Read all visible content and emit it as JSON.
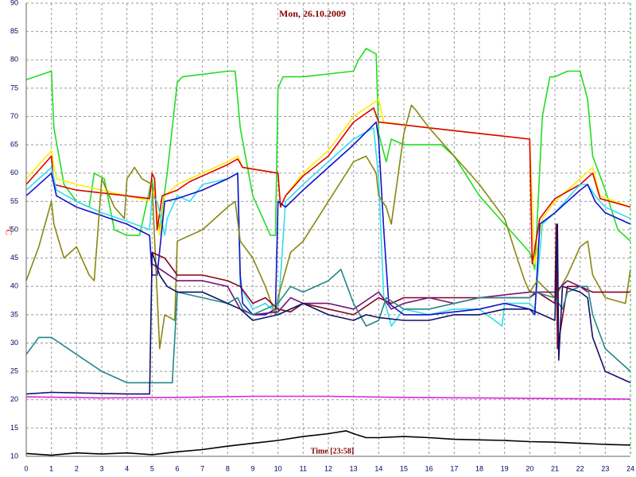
{
  "chart_data": {
    "type": "line",
    "title": "Mon, 26.10.2009",
    "x_label": "Time [23:58]",
    "y_label": "°C",
    "xlim": [
      0,
      24
    ],
    "ylim": [
      10,
      90
    ],
    "grid": true,
    "xticks": [
      0,
      1,
      2,
      3,
      4,
      5,
      6,
      7,
      8,
      9,
      10,
      11,
      12,
      13,
      14,
      15,
      16,
      17,
      18,
      19,
      20,
      21,
      22,
      23,
      24
    ],
    "yticks": [
      10,
      15,
      20,
      25,
      30,
      35,
      40,
      45,
      50,
      55,
      60,
      65,
      70,
      75,
      80,
      85,
      90
    ],
    "series": [
      {
        "color": "#22dd22",
        "x": [
          0,
          1,
          1.1,
          1.5,
          2,
          2.5,
          2.7,
          3.1,
          3.5,
          4,
          4.5,
          5,
          5.3,
          5.6,
          6,
          6.2,
          8,
          8.3,
          8.5,
          9,
          9.7,
          9.9,
          10,
          10.2,
          11,
          13,
          13.2,
          13.5,
          13.9,
          14,
          14.3,
          14.5,
          15,
          16,
          16.5,
          17,
          18,
          19,
          20,
          20.2,
          20.5,
          20.8,
          21,
          21.5,
          22,
          22.3,
          22.5,
          23,
          23.5,
          24
        ],
        "values": [
          76.5,
          78,
          68,
          58,
          55,
          54,
          60,
          59,
          50,
          49,
          49,
          59,
          50,
          60,
          76,
          77,
          78,
          78,
          68,
          56,
          49,
          49,
          75,
          77,
          77,
          78,
          80,
          82,
          81,
          67,
          62,
          66,
          65,
          65,
          65,
          63,
          56,
          51,
          46,
          43,
          70,
          77,
          77,
          78,
          78,
          73,
          63,
          57,
          50,
          48
        ]
      },
      {
        "color": "#ffee00",
        "x": [
          0,
          1,
          1.2,
          2,
          3,
          4,
          5,
          5.1,
          5.3,
          5.5,
          6,
          6.5,
          8,
          8.4,
          8.6,
          10,
          10.1,
          10.3,
          11,
          12,
          13,
          14,
          14.2,
          16,
          18,
          20,
          20.2,
          20.5,
          21,
          22,
          22.5,
          22.8,
          24
        ],
        "values": [
          59,
          64,
          59,
          58,
          57,
          56,
          55,
          57,
          49,
          56,
          58,
          59,
          62,
          63,
          61,
          60,
          54,
          56,
          60,
          64,
          70,
          73,
          69,
          68,
          67,
          66,
          44,
          52,
          55,
          59,
          61,
          56,
          54
        ]
      },
      {
        "color": "#dd0000",
        "x": [
          0,
          1,
          1.1,
          2,
          3,
          4,
          4.9,
          5,
          5.1,
          5.2,
          5.4,
          6,
          6.5,
          8,
          8.4,
          8.6,
          10,
          10.1,
          10.3,
          11,
          12,
          13,
          13.8,
          14,
          16,
          18,
          20,
          20.1,
          20.4,
          21,
          22,
          22.5,
          22.8,
          24
        ],
        "values": [
          58,
          63,
          58,
          57,
          56.5,
          56,
          55.5,
          60,
          59,
          50,
          56,
          57,
          58.5,
          61.5,
          62.5,
          61,
          60,
          54,
          56,
          59.5,
          63,
          69,
          71.5,
          69,
          68,
          67,
          66,
          44,
          52,
          55.5,
          58,
          60,
          55.5,
          54
        ]
      },
      {
        "color": "#33ddee",
        "x": [
          0,
          1,
          1.2,
          2,
          3,
          4,
          4.9,
          5,
          5.2,
          5.5,
          5.6,
          6,
          6.5,
          7,
          8,
          8.4,
          8.5,
          9,
          9.5,
          10,
          10.3,
          11,
          12,
          13,
          13.8,
          14,
          14.2,
          14.5,
          15,
          16,
          17,
          18,
          18.9,
          19,
          20,
          20.2,
          20.5,
          21,
          22,
          22.3,
          22.6,
          23,
          24
        ],
        "values": [
          57,
          61,
          57,
          55,
          53,
          51.5,
          50,
          56,
          55,
          49,
          52,
          56,
          55,
          58,
          59,
          60,
          40,
          36,
          37,
          35,
          55,
          58,
          62,
          66,
          68,
          59,
          38,
          33,
          36,
          35,
          36,
          36,
          33,
          37,
          37,
          36,
          51,
          53,
          58,
          58,
          56,
          54,
          52
        ]
      },
      {
        "color": "#1111cc",
        "x": [
          0,
          1,
          1.2,
          2,
          3,
          4,
          4.9,
          5,
          5.2,
          5.5,
          6,
          7,
          8,
          8.4,
          8.5,
          8.6,
          9,
          9.5,
          9.9,
          10,
          10.3,
          11,
          12,
          13,
          13.9,
          14,
          14.2,
          14.4,
          15,
          16,
          17,
          18,
          19,
          20,
          20.2,
          20.4,
          21,
          22,
          22.3,
          22.6,
          23,
          24
        ],
        "values": [
          56,
          60,
          56,
          54,
          52.5,
          51,
          49,
          42,
          42,
          55,
          55.5,
          57,
          59,
          60,
          42,
          37,
          35,
          35,
          36,
          55,
          54,
          57,
          61,
          65,
          69,
          66,
          50,
          37,
          35,
          35,
          35.5,
          36,
          37,
          36,
          35,
          51,
          53,
          57,
          58,
          55,
          53,
          51
        ]
      },
      {
        "color": "#888811",
        "x": [
          0,
          0.5,
          1,
          1.1,
          1.5,
          2,
          2.5,
          2.7,
          3,
          3.5,
          3.9,
          4,
          4.3,
          4.6,
          5,
          5.3,
          5.5,
          5.9,
          6,
          7,
          8,
          8.3,
          8.5,
          9,
          9.5,
          9.9,
          10,
          10.5,
          11,
          12,
          13,
          13.5,
          13.9,
          14,
          14.3,
          14.5,
          15,
          15.3,
          15.5,
          16,
          17,
          18,
          19,
          19.5,
          19.8,
          20,
          20.3,
          21,
          21.5,
          22,
          22.3,
          22.5,
          23,
          23.8,
          24
        ],
        "values": [
          41,
          47,
          55,
          51,
          45,
          47,
          42,
          41,
          59,
          54,
          52,
          59,
          61,
          59,
          58,
          29,
          35,
          34,
          48,
          50,
          54,
          55,
          48,
          45,
          40,
          35,
          38,
          46,
          48,
          55,
          62,
          63,
          60,
          56,
          54,
          51,
          67,
          72,
          71,
          68,
          63,
          58,
          52,
          45,
          41,
          39,
          41,
          38,
          42,
          47,
          48,
          42,
          38,
          37,
          43
        ]
      },
      {
        "color": "#880022",
        "x": [
          5,
          5.5,
          6,
          7,
          8,
          8.5,
          9,
          9.5,
          10,
          10.5,
          11,
          12,
          13,
          14,
          14.5,
          15,
          16,
          17,
          18,
          19,
          20,
          20.3,
          21,
          21.05,
          21.1,
          21.5,
          22,
          22.5,
          24
        ],
        "values": [
          46,
          45,
          42,
          42,
          41,
          40,
          37,
          38,
          36,
          35.5,
          37,
          36,
          35,
          38,
          37,
          38,
          38,
          38,
          38,
          38,
          38,
          39,
          37,
          51,
          29,
          40,
          40,
          39,
          39
        ]
      },
      {
        "color": "#771177",
        "x": [
          5,
          6,
          7,
          8,
          8.5,
          9,
          10,
          10.5,
          11,
          12,
          13,
          14,
          14.5,
          15,
          16,
          17,
          18,
          19,
          20,
          21,
          21.5,
          22,
          22.3
        ],
        "values": [
          44,
          41,
          41,
          40,
          36,
          35,
          35.5,
          38,
          37,
          37,
          36,
          39,
          36,
          37,
          38,
          37,
          38,
          38.5,
          39,
          39,
          41,
          40,
          39
        ]
      },
      {
        "color": "#228888",
        "x": [
          0,
          0.5,
          1,
          2,
          3,
          4,
          5,
          5.8,
          6,
          7,
          8,
          8.4,
          8.6,
          9,
          9.5,
          10,
          10.5,
          11,
          12,
          12.5,
          13,
          13.5,
          14,
          14.3,
          15,
          16,
          17,
          18,
          19,
          20,
          20.2,
          21,
          21.3,
          21.5,
          22,
          22.3,
          22.5,
          23,
          24
        ],
        "values": [
          28,
          31,
          31,
          28,
          25,
          23,
          23,
          23,
          39,
          38,
          37,
          38,
          36,
          35,
          36,
          37,
          40,
          39,
          41,
          43,
          37,
          33,
          34,
          38,
          36,
          36,
          37,
          38,
          38,
          38,
          39,
          38,
          36,
          39,
          40,
          40,
          35,
          29,
          25
        ]
      },
      {
        "color": "#111166",
        "x": [
          0,
          1,
          2,
          3,
          4,
          4.9,
          5,
          5.3,
          5.6,
          6,
          7,
          8,
          8.5,
          9,
          10,
          11,
          12,
          13,
          13.5,
          14,
          15,
          16,
          17,
          18,
          19,
          20,
          20.5,
          21,
          21.1,
          21.15,
          21.3,
          22,
          22.3,
          22.5,
          23,
          24
        ],
        "values": [
          21,
          21.3,
          21.2,
          21.1,
          21,
          21,
          46,
          42,
          40,
          39,
          39,
          37,
          36,
          34,
          35,
          37,
          35,
          34,
          35,
          34.5,
          34,
          34,
          35,
          35,
          36,
          36,
          35,
          34,
          51,
          27,
          40,
          39,
          38,
          31,
          25,
          23
        ]
      },
      {
        "color": "#dd22dd",
        "x": [
          0,
          3,
          6,
          9,
          12,
          15,
          18,
          21,
          24
        ],
        "values": [
          20.5,
          20.3,
          20.4,
          20.6,
          20.6,
          20.4,
          20.3,
          20.2,
          20.1
        ]
      },
      {
        "color": "#000000",
        "x": [
          0,
          1,
          2,
          3,
          4,
          5,
          6,
          7,
          8,
          9,
          10,
          11,
          12,
          12.7,
          13,
          13.5,
          14,
          15,
          16,
          17,
          18,
          19,
          20,
          21,
          22,
          23,
          24
        ],
        "values": [
          10.5,
          10.2,
          10.6,
          10.4,
          10.6,
          10.3,
          10.8,
          11.2,
          11.8,
          12.3,
          12.8,
          13.5,
          14,
          14.5,
          14,
          13.3,
          13.3,
          13.5,
          13.3,
          13,
          12.9,
          12.8,
          12.6,
          12.5,
          12.3,
          12.1,
          12
        ]
      }
    ]
  }
}
